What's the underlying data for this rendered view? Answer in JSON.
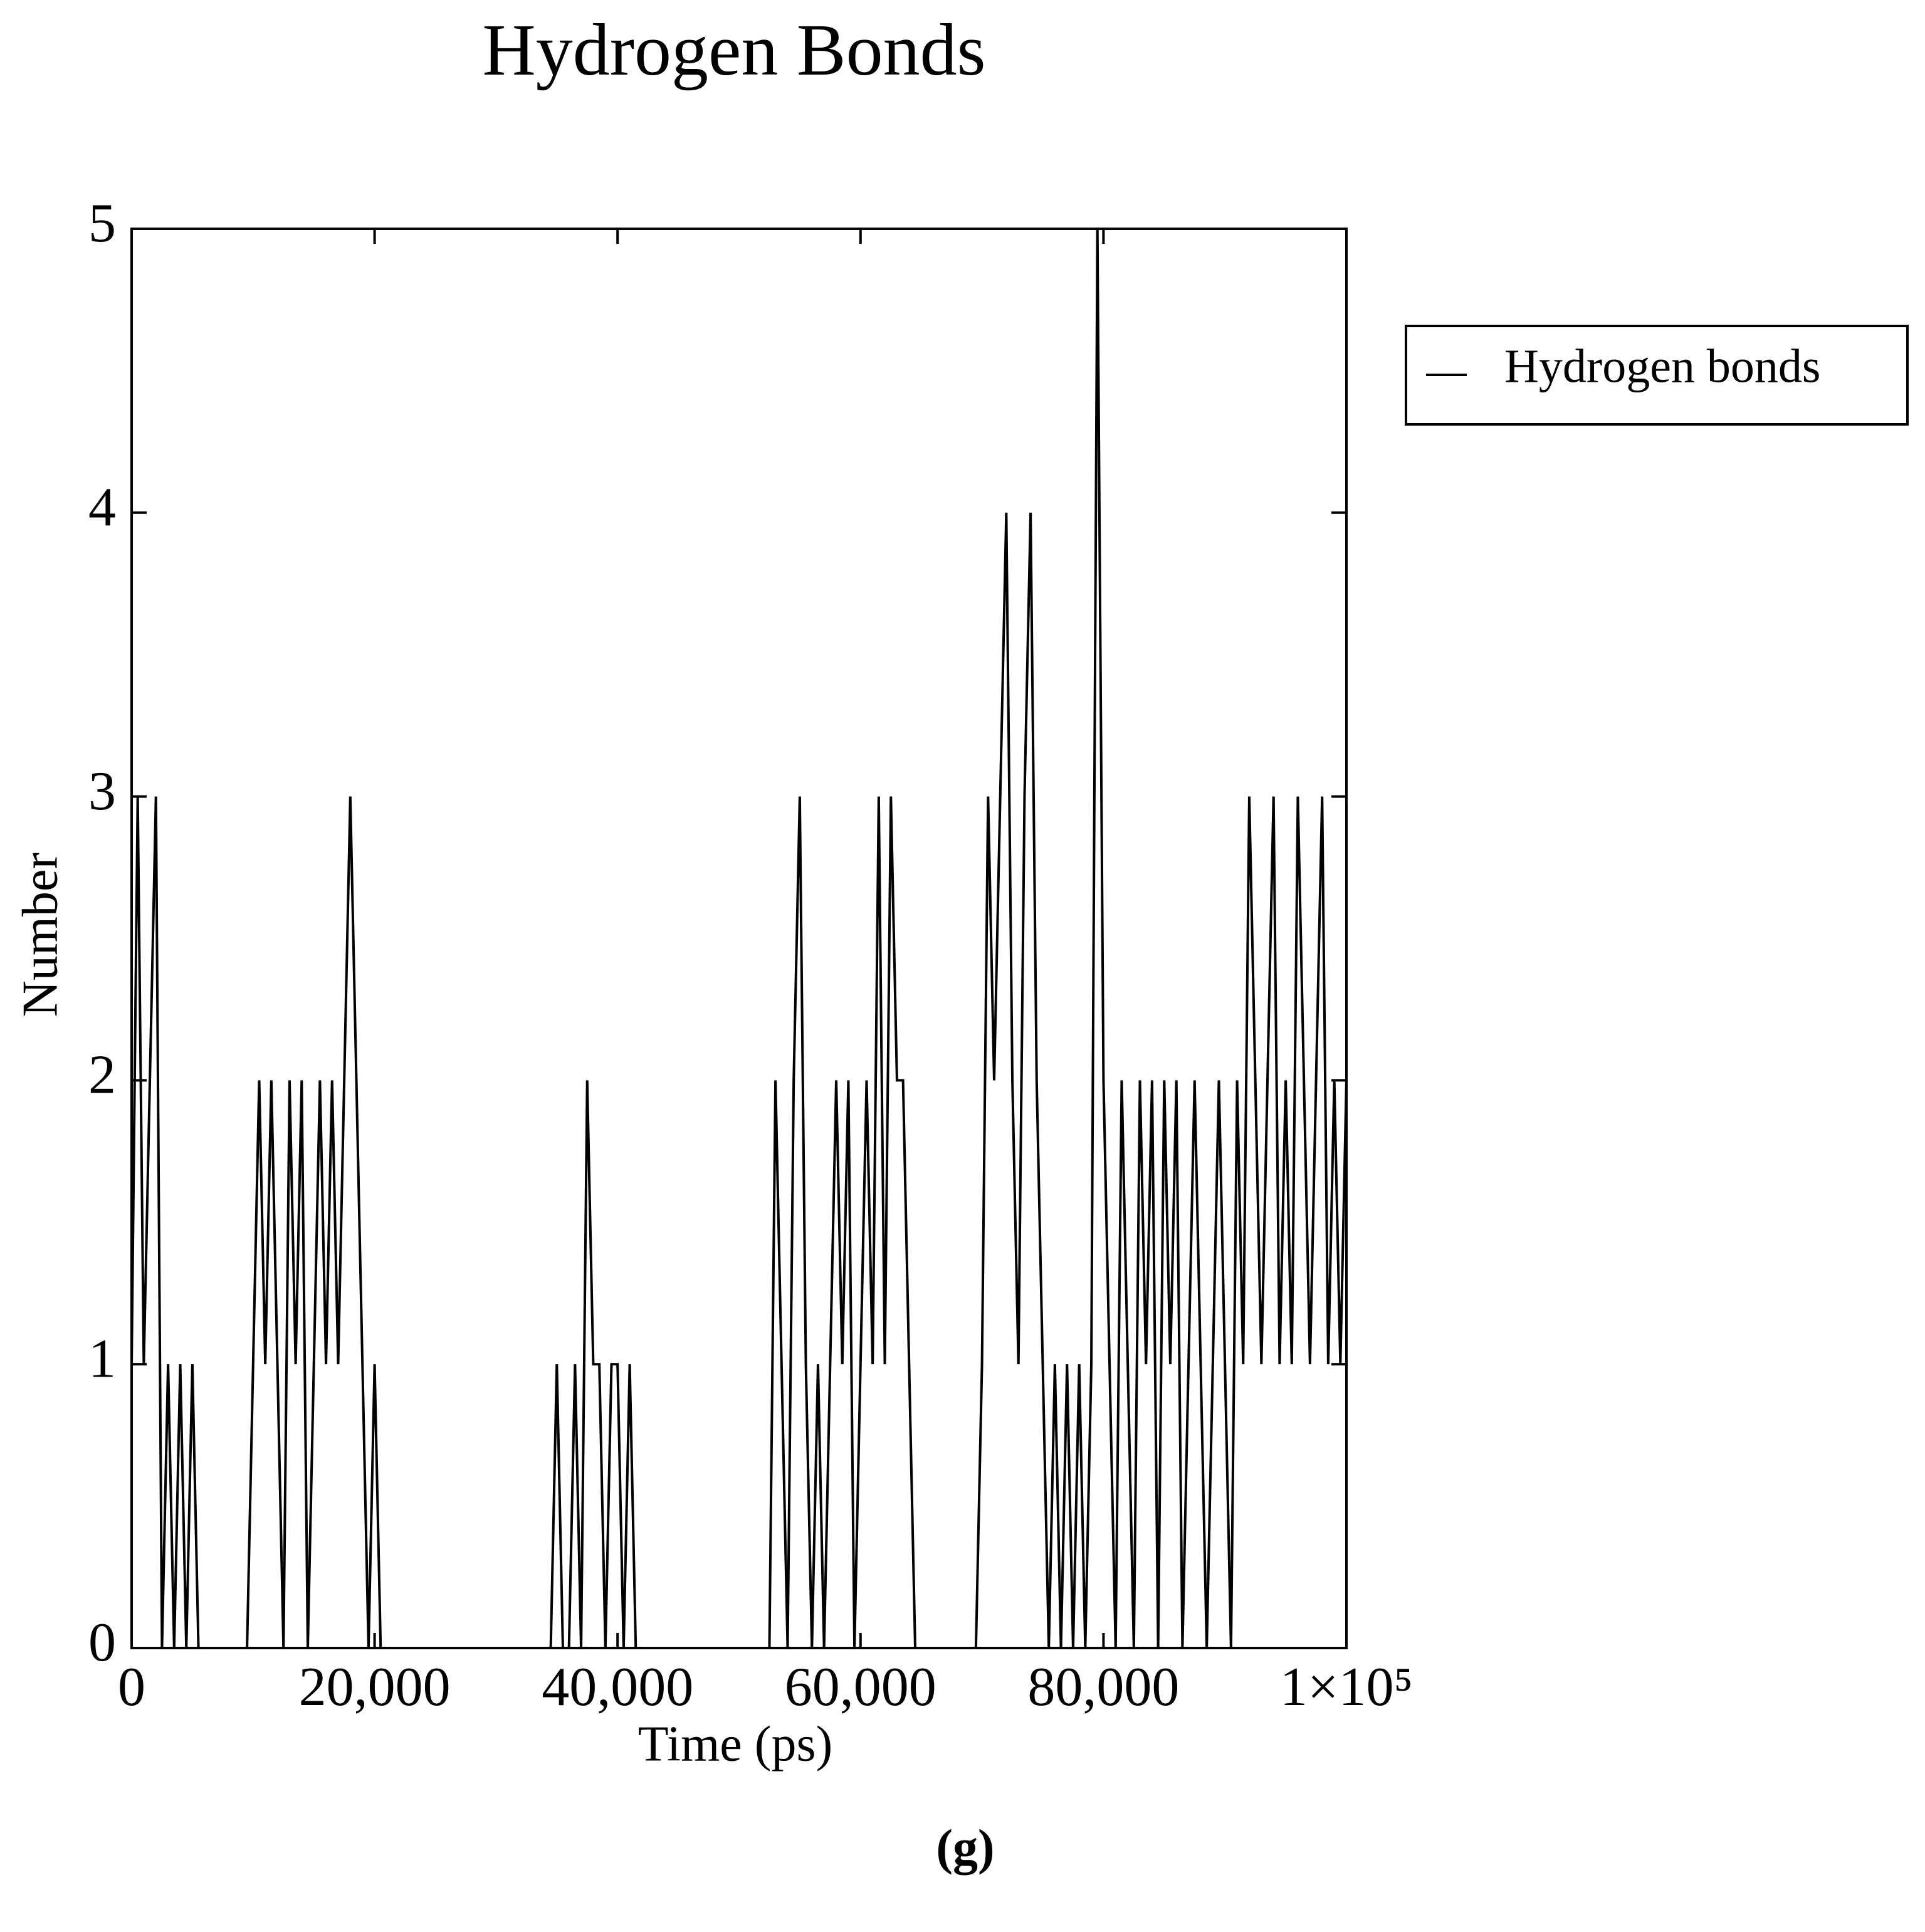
{
  "chart_data": {
    "type": "line",
    "title": "Hydrogen Bonds",
    "x_label": "Time (ps)",
    "y_label": "Number",
    "caption": "(g)",
    "legend": "outside-right",
    "xlim": [
      0,
      100000
    ],
    "ylim": [
      0,
      5
    ],
    "xticks": [
      0,
      {
        "value": 20000,
        "label": "20,000"
      },
      {
        "value": 40000,
        "label": "40,000"
      },
      {
        "value": 60000,
        "label": "60,000"
      },
      {
        "value": 80000,
        "label": "80,000"
      },
      {
        "value": 100000,
        "label": "1×10⁵"
      }
    ],
    "yticks": [
      0,
      1,
      2,
      3,
      4,
      5
    ],
    "x": [
      0,
      500,
      1000,
      1500,
      2000,
      2500,
      3000,
      3500,
      4000,
      4500,
      5000,
      5500,
      6000,
      6500,
      7000,
      7500,
      8000,
      8500,
      9000,
      9500,
      10000,
      10500,
      11000,
      11500,
      12000,
      12500,
      13000,
      13500,
      14000,
      14500,
      15000,
      15500,
      16000,
      16500,
      17000,
      17500,
      18000,
      18500,
      19000,
      19500,
      20000,
      20500,
      21000,
      21500,
      22000,
      22500,
      23000,
      23500,
      24000,
      24500,
      25000,
      25500,
      26000,
      26500,
      27000,
      27500,
      28000,
      28500,
      29000,
      29500,
      30000,
      30500,
      31000,
      31500,
      32000,
      32500,
      33000,
      33500,
      34000,
      34500,
      35000,
      35500,
      36000,
      36500,
      37000,
      37500,
      38000,
      38500,
      39000,
      39500,
      40000,
      40500,
      41000,
      41500,
      42000,
      42500,
      43000,
      43500,
      44000,
      44500,
      45000,
      45500,
      46000,
      46500,
      47000,
      47500,
      48000,
      48500,
      49000,
      49500,
      50000,
      50500,
      51000,
      51500,
      52000,
      52500,
      53000,
      53500,
      54000,
      54500,
      55000,
      55500,
      56000,
      56500,
      57000,
      57500,
      58000,
      58500,
      59000,
      59500,
      60000,
      60500,
      61000,
      61500,
      62000,
      62500,
      63000,
      63500,
      64000,
      64500,
      65000,
      65500,
      66000,
      66500,
      67000,
      67500,
      68000,
      68500,
      69000,
      69500,
      70000,
      70500,
      71000,
      71500,
      72000,
      72500,
      73000,
      73500,
      74000,
      74500,
      75000,
      75500,
      76000,
      76500,
      77000,
      77500,
      78000,
      78500,
      79000,
      79500,
      80000,
      80500,
      81000,
      81500,
      82000,
      82500,
      83000,
      83500,
      84000,
      84500,
      85000,
      85500,
      86000,
      86500,
      87000,
      87500,
      88000,
      88500,
      89000,
      89500,
      90000,
      90500,
      91000,
      91500,
      92000,
      92500,
      93000,
      93500,
      94000,
      94500,
      95000,
      95500,
      96000,
      96500,
      97000,
      97500,
      98000,
      98500,
      99000,
      99500,
      100000
    ],
    "series": [
      {
        "name": "Hydrogen bonds",
        "color": "#000000",
        "values": [
          1,
          3,
          1,
          2,
          3,
          0,
          1,
          0,
          1,
          0,
          1,
          0,
          0,
          0,
          0,
          0,
          0,
          0,
          0,
          0,
          1,
          2,
          1,
          2,
          1,
          0,
          2,
          1,
          2,
          0,
          1,
          2,
          1,
          2,
          1,
          2,
          3,
          2,
          1,
          0,
          1,
          0,
          0,
          0,
          0,
          0,
          0,
          0,
          0,
          0,
          0,
          0,
          0,
          0,
          0,
          0,
          0,
          0,
          0,
          0,
          0,
          0,
          0,
          0,
          0,
          0,
          0,
          0,
          0,
          0,
          1,
          0,
          0,
          1,
          0,
          2,
          1,
          1,
          0,
          1,
          1,
          0,
          1,
          0,
          0,
          0,
          0,
          0,
          0,
          0,
          0,
          0,
          0,
          0,
          0,
          0,
          0,
          0,
          0,
          0,
          0,
          0,
          0,
          0,
          0,
          0,
          2,
          1,
          0,
          2,
          3,
          1,
          0,
          1,
          0,
          1,
          2,
          1,
          2,
          0,
          1,
          2,
          1,
          3,
          1,
          3,
          2,
          2,
          1,
          0,
          0,
          0,
          0,
          0,
          0,
          0,
          0,
          0,
          0,
          0,
          1,
          3,
          2,
          3,
          4,
          2,
          1,
          3,
          4,
          2,
          1,
          0,
          1,
          0,
          1,
          0,
          1,
          0,
          1,
          5,
          2,
          1,
          0,
          2,
          1,
          0,
          2,
          1,
          2,
          0,
          2,
          1,
          2,
          0,
          1,
          2,
          1,
          0,
          1,
          2,
          1,
          0,
          2,
          1,
          3,
          2,
          1,
          2,
          3,
          1,
          2,
          1,
          3,
          2,
          1,
          2,
          3,
          1,
          2,
          1,
          2
        ]
      }
    ]
  }
}
